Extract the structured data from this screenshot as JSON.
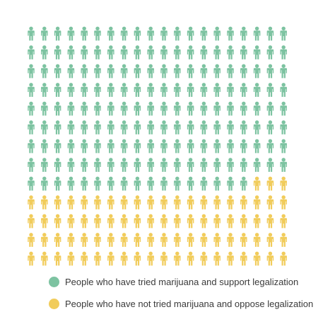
{
  "chart_data": {
    "type": "pictogram",
    "title": "",
    "rows": 13,
    "columns": 20,
    "total_icons": 260,
    "fill_order": "row-major from top-left",
    "series": [
      {
        "name": "People who have tried marijuana and support legalization",
        "value": 177,
        "color": "#7dc3a1"
      },
      {
        "name": "People who have not tried marijuana and oppose legalization",
        "value": 83,
        "color": "#f1cc5b"
      }
    ],
    "legend_position": "bottom"
  }
}
